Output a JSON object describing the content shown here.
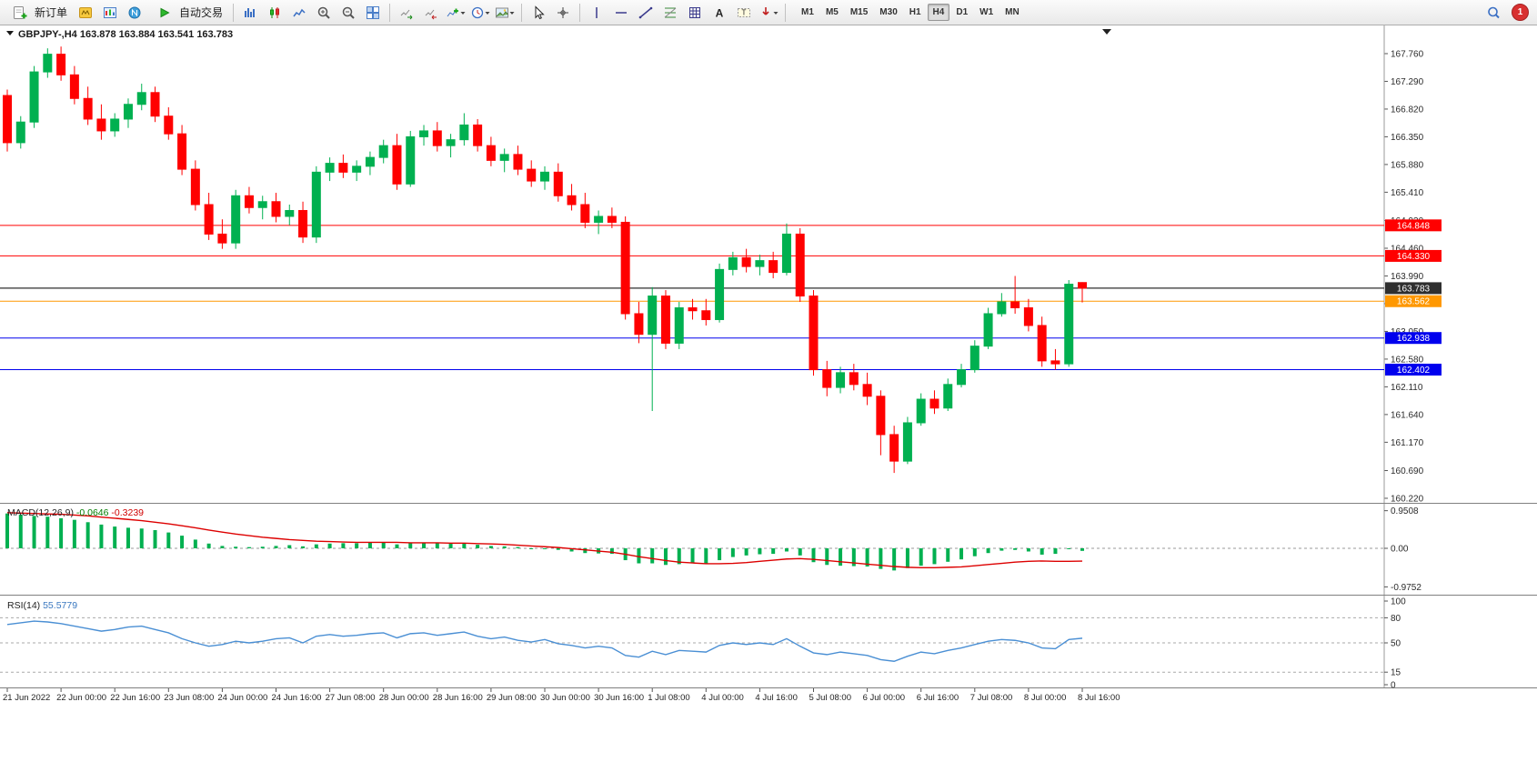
{
  "toolbar": {
    "new_order_label": "新订单",
    "auto_trading_label": "自动交易",
    "timeframes": [
      "M1",
      "M5",
      "M15",
      "M30",
      "H1",
      "H4",
      "D1",
      "W1",
      "MN"
    ],
    "active_timeframe": "H4",
    "notification_count": "1"
  },
  "chart_header": {
    "symbol_period": "GBPJPY-,H4",
    "ohlc_text": "163.878 163.884 163.541 163.783"
  },
  "chart_data": {
    "type": "candlestick",
    "symbol": "GBPJPY-",
    "timeframe": "H4",
    "current_ohlc": {
      "open": 163.878,
      "high": 163.884,
      "low": 163.541,
      "close": 163.783
    },
    "price_axis_labels": [
      "167.760",
      "167.290",
      "166.820",
      "166.350",
      "165.880",
      "165.410",
      "164.930",
      "164.460",
      "163.990",
      "163.520",
      "163.050",
      "162.580",
      "162.110",
      "161.640",
      "161.170",
      "160.690",
      "160.220"
    ],
    "price_range": [
      160.158,
      168.176
    ],
    "label_interval": 4,
    "time_labels": [
      "21 Jun 2022",
      "22 Jun 00:00",
      "22 Jun 16:00",
      "23 Jun 08:00",
      "24 Jun 00:00",
      "24 Jun 16:00",
      "27 Jun 08:00",
      "28 Jun 00:00",
      "28 Jun 16:00",
      "29 Jun 08:00",
      "30 Jun 00:00",
      "30 Jun 16:00",
      "1 Jul 08:00",
      "4 Jul 00:00",
      "4 Jul 16:00",
      "5 Jul 08:00",
      "6 Jul 00:00",
      "6 Jul 16:00",
      "7 Jul 08:00",
      "8 Jul 00:00",
      "8 Jul 16:00"
    ],
    "level_lines": [
      {
        "price": "164.848",
        "color": "#ff0000",
        "is_current_price": false
      },
      {
        "price": "164.330",
        "color": "#ff0000",
        "is_current_price": false
      },
      {
        "price": "163.783",
        "color": "#2f2f2f",
        "is_current_price": true
      },
      {
        "price": "163.562",
        "color": "#ff9800",
        "is_current_price": false
      },
      {
        "price": "162.938",
        "color": "#0000ee",
        "is_current_price": false
      },
      {
        "price": "162.402",
        "color": "#0000ee",
        "is_current_price": false
      }
    ],
    "colors": {
      "bull": "#00b050",
      "bear": "#ff0000",
      "macd_hist": "#00b050",
      "macd_signal": "#dd0000",
      "rsi_line": "#4a8fd4",
      "background": "#ffffff",
      "axis_text": "#2b2b2b"
    },
    "candles": [
      [
        167.05,
        167.15,
        166.1,
        166.25
      ],
      [
        166.25,
        166.7,
        166.15,
        166.6
      ],
      [
        166.6,
        167.55,
        166.5,
        167.45
      ],
      [
        167.45,
        167.85,
        167.35,
        167.75
      ],
      [
        167.75,
        167.88,
        167.3,
        167.4
      ],
      [
        167.4,
        167.55,
        166.9,
        167.0
      ],
      [
        167.0,
        167.2,
        166.55,
        166.65
      ],
      [
        166.65,
        166.9,
        166.3,
        166.45
      ],
      [
        166.45,
        166.75,
        166.35,
        166.65
      ],
      [
        166.65,
        167.0,
        166.5,
        166.9
      ],
      [
        166.9,
        167.25,
        166.8,
        167.1
      ],
      [
        167.1,
        167.2,
        166.6,
        166.7
      ],
      [
        166.7,
        166.85,
        166.3,
        166.4
      ],
      [
        166.4,
        166.55,
        165.7,
        165.8
      ],
      [
        165.8,
        165.95,
        165.1,
        165.2
      ],
      [
        165.2,
        165.4,
        164.6,
        164.7
      ],
      [
        164.7,
        164.95,
        164.45,
        164.55
      ],
      [
        164.55,
        165.45,
        164.45,
        165.35
      ],
      [
        165.35,
        165.5,
        165.05,
        165.15
      ],
      [
        165.15,
        165.35,
        164.95,
        165.25
      ],
      [
        165.25,
        165.4,
        164.9,
        165.0
      ],
      [
        165.0,
        165.2,
        164.85,
        165.1
      ],
      [
        165.1,
        165.25,
        164.55,
        164.65
      ],
      [
        164.65,
        165.85,
        164.55,
        165.75
      ],
      [
        165.75,
        166.0,
        165.6,
        165.9
      ],
      [
        165.9,
        166.05,
        165.65,
        165.75
      ],
      [
        165.75,
        165.95,
        165.6,
        165.85
      ],
      [
        165.85,
        166.1,
        165.7,
        166.0
      ],
      [
        166.0,
        166.3,
        165.9,
        166.2
      ],
      [
        166.2,
        166.4,
        165.45,
        165.55
      ],
      [
        165.55,
        166.45,
        165.5,
        166.35
      ],
      [
        166.35,
        166.55,
        166.2,
        166.45
      ],
      [
        166.45,
        166.6,
        166.1,
        166.2
      ],
      [
        166.2,
        166.4,
        166.0,
        166.3
      ],
      [
        166.3,
        166.75,
        166.2,
        166.55
      ],
      [
        166.55,
        166.65,
        166.1,
        166.2
      ],
      [
        166.2,
        166.35,
        165.85,
        165.95
      ],
      [
        165.95,
        166.15,
        165.75,
        166.05
      ],
      [
        166.05,
        166.2,
        165.7,
        165.8
      ],
      [
        165.8,
        165.95,
        165.5,
        165.6
      ],
      [
        165.6,
        165.85,
        165.45,
        165.75
      ],
      [
        165.75,
        165.9,
        165.25,
        165.35
      ],
      [
        165.35,
        165.55,
        165.1,
        165.2
      ],
      [
        165.2,
        165.4,
        164.8,
        164.9
      ],
      [
        164.9,
        165.1,
        164.7,
        165.0
      ],
      [
        165.0,
        165.15,
        164.8,
        164.9
      ],
      [
        164.9,
        165.0,
        163.25,
        163.35
      ],
      [
        163.35,
        163.55,
        162.85,
        163.0
      ],
      [
        163.0,
        163.8,
        161.7,
        163.65
      ],
      [
        163.65,
        163.75,
        162.75,
        162.85
      ],
      [
        162.85,
        163.55,
        162.75,
        163.45
      ],
      [
        163.45,
        163.6,
        163.25,
        163.4
      ],
      [
        163.4,
        163.6,
        163.15,
        163.25
      ],
      [
        163.25,
        164.2,
        163.2,
        164.1
      ],
      [
        164.1,
        164.4,
        164.0,
        164.3
      ],
      [
        164.3,
        164.45,
        164.05,
        164.15
      ],
      [
        164.15,
        164.35,
        164.0,
        164.25
      ],
      [
        164.25,
        164.4,
        163.95,
        164.05
      ],
      [
        164.05,
        164.88,
        164.0,
        164.7
      ],
      [
        164.7,
        164.8,
        163.55,
        163.65
      ],
      [
        163.65,
        163.75,
        162.3,
        162.4
      ],
      [
        162.4,
        162.55,
        161.95,
        162.1
      ],
      [
        162.1,
        162.45,
        162.0,
        162.35
      ],
      [
        162.35,
        162.5,
        162.05,
        162.15
      ],
      [
        162.15,
        162.35,
        161.8,
        161.95
      ],
      [
        161.95,
        162.05,
        160.95,
        161.3
      ],
      [
        161.3,
        161.45,
        160.65,
        160.85
      ],
      [
        160.85,
        161.6,
        160.8,
        161.5
      ],
      [
        161.5,
        162.0,
        161.45,
        161.9
      ],
      [
        161.9,
        162.05,
        161.65,
        161.75
      ],
      [
        161.75,
        162.25,
        161.7,
        162.15
      ],
      [
        162.15,
        162.5,
        162.1,
        162.4
      ],
      [
        162.4,
        162.9,
        162.35,
        162.8
      ],
      [
        162.8,
        163.45,
        162.75,
        163.35
      ],
      [
        163.35,
        163.7,
        163.3,
        163.55
      ],
      [
        163.55,
        163.99,
        163.35,
        163.45
      ],
      [
        163.45,
        163.6,
        163.05,
        163.15
      ],
      [
        163.15,
        163.3,
        162.45,
        162.55
      ],
      [
        162.55,
        162.75,
        162.4,
        162.5
      ],
      [
        162.5,
        163.92,
        162.45,
        163.85
      ],
      [
        163.878,
        163.884,
        163.541,
        163.783
      ]
    ],
    "indicators": [
      {
        "id": "macd",
        "title": "MACD(12,26,9)",
        "value1": "-0.0646",
        "value2": "-0.3239",
        "axis_labels": [
          "0.9508",
          "0.00",
          "-0.9752"
        ],
        "range": [
          -0.9752,
          0.9508
        ],
        "histogram": [
          0.88,
          0.85,
          0.82,
          0.8,
          0.76,
          0.72,
          0.66,
          0.6,
          0.55,
          0.52,
          0.5,
          0.46,
          0.4,
          0.32,
          0.22,
          0.12,
          0.06,
          0.04,
          0.03,
          0.04,
          0.06,
          0.08,
          0.05,
          0.1,
          0.12,
          0.13,
          0.13,
          0.14,
          0.15,
          0.1,
          0.13,
          0.14,
          0.13,
          0.12,
          0.13,
          0.09,
          0.06,
          0.05,
          0.03,
          0.0,
          0.0,
          -0.04,
          -0.08,
          -0.12,
          -0.13,
          -0.14,
          -0.3,
          -0.38,
          -0.38,
          -0.42,
          -0.4,
          -0.38,
          -0.4,
          -0.3,
          -0.22,
          -0.18,
          -0.15,
          -0.14,
          -0.08,
          -0.18,
          -0.35,
          -0.42,
          -0.44,
          -0.45,
          -0.46,
          -0.52,
          -0.56,
          -0.5,
          -0.44,
          -0.4,
          -0.34,
          -0.28,
          -0.2,
          -0.12,
          -0.06,
          -0.04,
          -0.08,
          -0.16,
          -0.14,
          -0.02,
          -0.0646
        ],
        "signal": [
          0.9,
          0.89,
          0.88,
          0.87,
          0.86,
          0.84,
          0.82,
          0.79,
          0.76,
          0.73,
          0.7,
          0.66,
          0.62,
          0.57,
          0.52,
          0.46,
          0.41,
          0.36,
          0.32,
          0.28,
          0.25,
          0.22,
          0.2,
          0.18,
          0.17,
          0.16,
          0.15,
          0.15,
          0.15,
          0.15,
          0.14,
          0.14,
          0.14,
          0.13,
          0.13,
          0.12,
          0.11,
          0.1,
          0.08,
          0.06,
          0.04,
          0.02,
          -0.01,
          -0.04,
          -0.07,
          -0.1,
          -0.15,
          -0.21,
          -0.26,
          -0.31,
          -0.35,
          -0.37,
          -0.39,
          -0.39,
          -0.38,
          -0.36,
          -0.33,
          -0.3,
          -0.27,
          -0.26,
          -0.28,
          -0.31,
          -0.34,
          -0.37,
          -0.4,
          -0.43,
          -0.46,
          -0.48,
          -0.49,
          -0.49,
          -0.48,
          -0.47,
          -0.44,
          -0.41,
          -0.38,
          -0.35,
          -0.33,
          -0.32,
          -0.33,
          -0.33,
          -0.3239
        ]
      },
      {
        "id": "rsi",
        "title": "RSI(14)",
        "value": "55.5779",
        "axis_labels": [
          "100",
          "80",
          "50",
          "15",
          "0"
        ],
        "levels": [
          80,
          50,
          15
        ],
        "range": [
          0,
          100
        ],
        "values": [
          72,
          74,
          76,
          75,
          73,
          70,
          67,
          64,
          66,
          69,
          70,
          66,
          62,
          55,
          50,
          46,
          48,
          52,
          50,
          52,
          55,
          56,
          50,
          58,
          60,
          58,
          59,
          61,
          62,
          56,
          61,
          62,
          59,
          61,
          63,
          58,
          55,
          57,
          53,
          51,
          54,
          49,
          47,
          44,
          46,
          44,
          35,
          33,
          40,
          36,
          41,
          40,
          39,
          47,
          50,
          48,
          50,
          48,
          55,
          46,
          38,
          36,
          39,
          37,
          35,
          30,
          28,
          34,
          39,
          37,
          41,
          44,
          48,
          52,
          54,
          53,
          50,
          44,
          43,
          54,
          55.5779
        ]
      }
    ]
  }
}
